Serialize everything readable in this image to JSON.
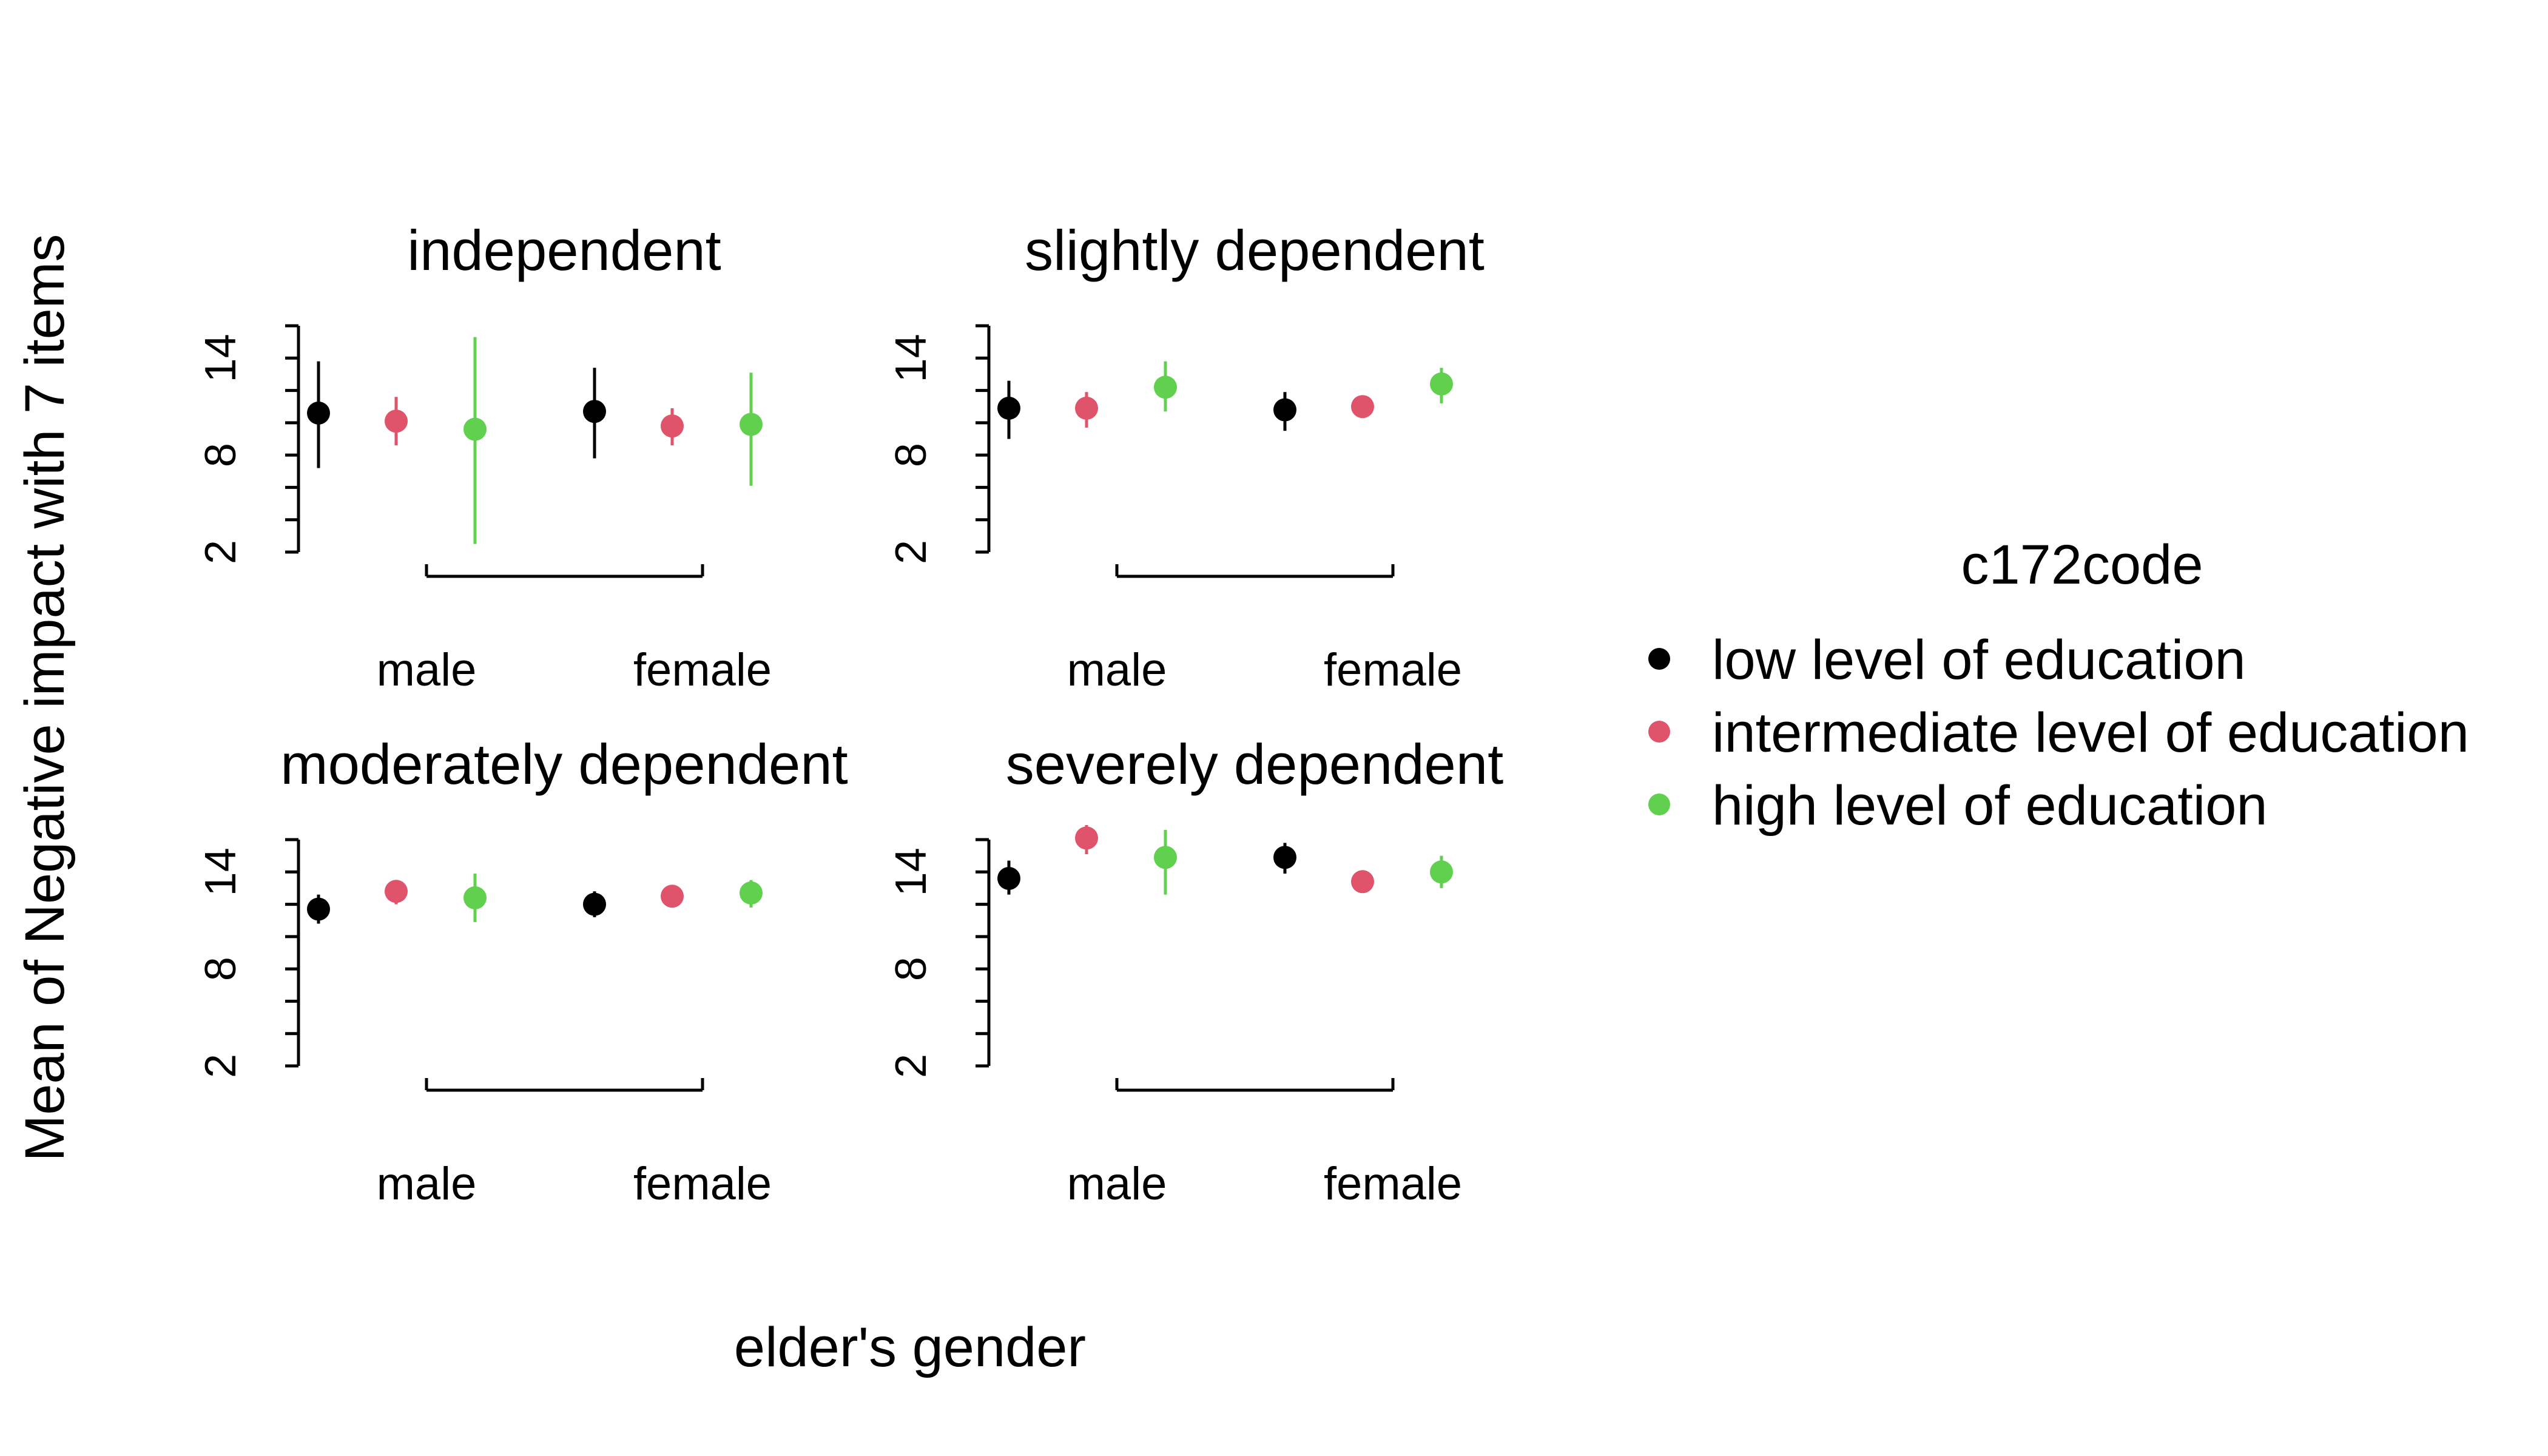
{
  "chart_data": {
    "type": "scatter",
    "subtype": "point-and-errorbar, faceted",
    "ylabel": "Mean of Negative impact with 7 items",
    "xlabel": "elder's gender",
    "categories": [
      "male",
      "female"
    ],
    "yticks": [
      2,
      8,
      14
    ],
    "ylim": [
      2,
      16
    ],
    "legend": {
      "title": "c172code",
      "position": "right",
      "items": [
        {
          "label": "low level of education",
          "color": "#000000"
        },
        {
          "label": "intermediate level of education",
          "color": "#DF536B"
        },
        {
          "label": "high level of education",
          "color": "#61D04F"
        }
      ]
    },
    "panels": [
      {
        "title": "independent",
        "series": [
          {
            "name": "low level of education",
            "values": [
              10.6,
              10.7
            ],
            "lower": [
              7.2,
              7.8
            ],
            "upper": [
              13.8,
              13.4
            ]
          },
          {
            "name": "intermediate level of education",
            "values": [
              10.1,
              9.8
            ],
            "lower": [
              8.6,
              8.6
            ],
            "upper": [
              11.6,
              10.9
            ]
          },
          {
            "name": "high level of education",
            "values": [
              9.6,
              9.9
            ],
            "lower": [
              2.5,
              6.1
            ],
            "upper": [
              15.3,
              13.1
            ]
          }
        ]
      },
      {
        "title": "slightly dependent",
        "series": [
          {
            "name": "low level of education",
            "values": [
              10.9,
              10.8
            ],
            "lower": [
              9.0,
              9.5
            ],
            "upper": [
              12.6,
              11.9
            ]
          },
          {
            "name": "intermediate level of education",
            "values": [
              10.9,
              11.0
            ],
            "lower": [
              9.7,
              10.4
            ],
            "upper": [
              11.9,
              11.6
            ]
          },
          {
            "name": "high level of education",
            "values": [
              12.2,
              12.4
            ],
            "lower": [
              10.7,
              11.2
            ],
            "upper": [
              13.8,
              13.4
            ]
          }
        ]
      },
      {
        "title": "moderately dependent",
        "series": [
          {
            "name": "low level of education",
            "values": [
              11.7,
              12.0
            ],
            "lower": [
              10.8,
              11.2
            ],
            "upper": [
              12.6,
              12.8
            ]
          },
          {
            "name": "intermediate level of education",
            "values": [
              12.8,
              12.5
            ],
            "lower": [
              12.0,
              12.0
            ],
            "upper": [
              13.5,
              13.0
            ]
          },
          {
            "name": "high level of education",
            "values": [
              12.4,
              12.7
            ],
            "lower": [
              10.9,
              11.8
            ],
            "upper": [
              13.9,
              13.5
            ]
          }
        ]
      },
      {
        "title": "severely dependent",
        "series": [
          {
            "name": "low level of education",
            "values": [
              13.6,
              14.9
            ],
            "lower": [
              12.6,
              13.9
            ],
            "upper": [
              14.7,
              15.8
            ]
          },
          {
            "name": "intermediate level of education",
            "values": [
              16.1,
              13.4
            ],
            "lower": [
              15.1,
              13.2
            ],
            "upper": [
              16.9,
              13.7
            ]
          },
          {
            "name": "high level of education",
            "values": [
              14.9,
              14.0
            ],
            "lower": [
              12.6,
              13.0
            ],
            "upper": [
              16.6,
              15.0
            ]
          }
        ]
      }
    ]
  }
}
